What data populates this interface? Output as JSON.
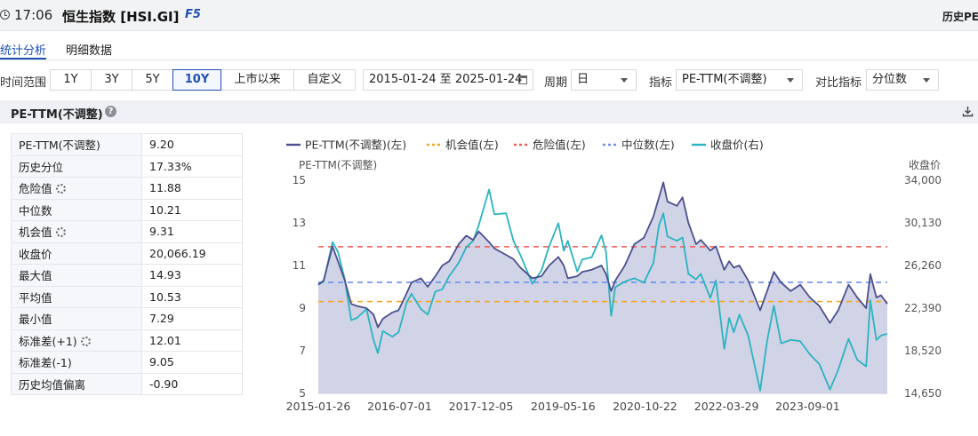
{
  "titlebar": {
    "time": "17:06",
    "index_title": "恒生指数 [HSI.GI]",
    "f5": "F5",
    "history_link": "历史PE"
  },
  "tabs": [
    {
      "label": "统计分析"
    },
    {
      "label": "明细数据"
    }
  ],
  "filters": {
    "time_range_label": "时间范围",
    "ranges": [
      "1Y",
      "3Y",
      "5Y",
      "10Y",
      "上市以来",
      "自定义"
    ],
    "active_range": "10Y",
    "date_range": "2015-01-24 至 2025-01-24",
    "period_label": "周期",
    "period_value": "日",
    "indicator_label": "指标",
    "indicator_value": "PE-TTM(不调整)",
    "compare_label": "对比指标",
    "compare_value": "分位数"
  },
  "section": {
    "title": "PE-TTM(不调整)"
  },
  "stats": [
    {
      "label": "PE-TTM(不调整)",
      "value": "9.20",
      "gear": false
    },
    {
      "label": "历史分位",
      "value": "17.33%",
      "gear": false
    },
    {
      "label": "危险值",
      "value": "11.88",
      "gear": true
    },
    {
      "label": "中位数",
      "value": "10.21",
      "gear": false
    },
    {
      "label": "机会值",
      "value": "9.31",
      "gear": true
    },
    {
      "label": "收盘价",
      "value": "20,066.19",
      "gear": false
    },
    {
      "label": "最大值",
      "value": "14.93",
      "gear": false
    },
    {
      "label": "平均值",
      "value": "10.53",
      "gear": false
    },
    {
      "label": "最小值",
      "value": "7.29",
      "gear": false
    },
    {
      "label": "标准差(+1)",
      "value": "12.01",
      "gear": true
    },
    {
      "label": "标准差(-1)",
      "value": "9.05",
      "gear": false
    },
    {
      "label": "历史均值偏离",
      "value": "-0.90",
      "gear": false
    }
  ],
  "colors": {
    "pe": "#4b4f8f",
    "pe_fill": "#c9cbe2",
    "price": "#2bb3c0",
    "opportunity": "#f5a623",
    "danger": "#f25c54",
    "median": "#6e8ef0",
    "accent": "#1f4fb3"
  },
  "chart_data": {
    "type": "line",
    "legend": [
      "PE-TTM(不调整)(左)",
      "机会值(左)",
      "危险值(左)",
      "中位数(左)",
      "收盘价(右)"
    ],
    "left_axis_label": "PE-TTM(不调整)",
    "right_axis_label": "收盘价",
    "left_ticks": [
      5,
      7,
      9,
      11,
      13,
      15
    ],
    "right_ticks": [
      "14,650",
      "18,520",
      "22,390",
      "26,260",
      "30,130",
      "34,000"
    ],
    "ylim_left": [
      5,
      15
    ],
    "ylim_right": [
      14650,
      34000
    ],
    "x_ticks": [
      "2015-01-26",
      "2016-07-01",
      "2017-12-05",
      "2019-05-16",
      "2020-10-22",
      "2022-03-29",
      "2023-09-01"
    ],
    "x_range": [
      "2015-01-26",
      "2025-01-24"
    ],
    "reference_lines": {
      "opportunity": 9.31,
      "danger": 11.88,
      "median": 10.21
    },
    "series": [
      {
        "name": "PE-TTM(不调整)",
        "axis": "left",
        "points": [
          [
            "2015-01-26",
            10.1
          ],
          [
            "2015-03-01",
            10.3
          ],
          [
            "2015-04-27",
            11.9
          ],
          [
            "2015-06-01",
            11.2
          ],
          [
            "2015-07-15",
            10.3
          ],
          [
            "2015-08-25",
            9.2
          ],
          [
            "2015-10-01",
            9.1
          ],
          [
            "2015-12-01",
            9.0
          ],
          [
            "2016-01-15",
            8.7
          ],
          [
            "2016-02-12",
            8.1
          ],
          [
            "2016-03-15",
            8.5
          ],
          [
            "2016-05-15",
            8.8
          ],
          [
            "2016-06-24",
            8.9
          ],
          [
            "2016-08-15",
            9.7
          ],
          [
            "2016-09-15",
            10.2
          ],
          [
            "2016-11-15",
            10.4
          ],
          [
            "2016-12-28",
            10.0
          ],
          [
            "2017-02-15",
            10.5
          ],
          [
            "2017-04-01",
            11.0
          ],
          [
            "2017-05-15",
            11.2
          ],
          [
            "2017-06-15",
            11.6
          ],
          [
            "2017-07-15",
            12.0
          ],
          [
            "2017-09-01",
            12.4
          ],
          [
            "2017-10-15",
            12.2
          ],
          [
            "2017-11-20",
            12.6
          ],
          [
            "2018-01-26",
            12.1
          ],
          [
            "2018-03-01",
            11.8
          ],
          [
            "2018-05-15",
            11.5
          ],
          [
            "2018-07-01",
            11.3
          ],
          [
            "2018-08-15",
            10.9
          ],
          [
            "2018-10-30",
            10.4
          ],
          [
            "2018-12-28",
            10.5
          ],
          [
            "2019-02-15",
            11.0
          ],
          [
            "2019-04-15",
            11.4
          ],
          [
            "2019-05-20",
            11.0
          ],
          [
            "2019-06-15",
            10.4
          ],
          [
            "2019-08-15",
            10.5
          ],
          [
            "2019-09-15",
            10.7
          ],
          [
            "2019-11-15",
            10.8
          ],
          [
            "2020-01-17",
            11.0
          ],
          [
            "2020-02-15",
            10.6
          ],
          [
            "2020-03-19",
            9.8
          ],
          [
            "2020-04-15",
            10.3
          ],
          [
            "2020-06-15",
            11.0
          ],
          [
            "2020-08-15",
            12.0
          ],
          [
            "2020-10-15",
            12.3
          ],
          [
            "2020-12-15",
            13.3
          ],
          [
            "2021-01-20",
            14.2
          ],
          [
            "2021-02-17",
            14.9
          ],
          [
            "2021-03-15",
            14.0
          ],
          [
            "2021-05-15",
            13.8
          ],
          [
            "2021-06-20",
            14.2
          ],
          [
            "2021-07-28",
            13.0
          ],
          [
            "2021-09-15",
            12.0
          ],
          [
            "2021-10-15",
            12.2
          ],
          [
            "2021-12-15",
            11.7
          ],
          [
            "2022-01-20",
            11.9
          ],
          [
            "2022-03-15",
            10.8
          ],
          [
            "2022-04-15",
            11.2
          ],
          [
            "2022-05-15",
            10.9
          ],
          [
            "2022-06-20",
            11.0
          ],
          [
            "2022-08-15",
            10.3
          ],
          [
            "2022-10-31",
            8.9
          ],
          [
            "2022-12-15",
            9.8
          ],
          [
            "2023-01-27",
            10.7
          ],
          [
            "2023-03-15",
            10.2
          ],
          [
            "2023-05-15",
            9.8
          ],
          [
            "2023-07-15",
            10.1
          ],
          [
            "2023-09-15",
            9.5
          ],
          [
            "2023-11-15",
            9.1
          ],
          [
            "2024-01-22",
            8.3
          ],
          [
            "2024-03-15",
            8.9
          ],
          [
            "2024-05-20",
            10.1
          ],
          [
            "2024-07-15",
            9.5
          ],
          [
            "2024-09-10",
            9.0
          ],
          [
            "2024-10-07",
            10.6
          ],
          [
            "2024-11-15",
            9.5
          ],
          [
            "2024-12-15",
            9.6
          ],
          [
            "2025-01-24",
            9.2
          ]
        ]
      },
      {
        "name": "收盘价",
        "axis": "right",
        "points": [
          [
            "2015-01-26",
            24500
          ],
          [
            "2015-03-01",
            24800
          ],
          [
            "2015-04-27",
            28400
          ],
          [
            "2015-06-01",
            27500
          ],
          [
            "2015-07-15",
            25000
          ],
          [
            "2015-08-25",
            21300
          ],
          [
            "2015-10-01",
            21500
          ],
          [
            "2015-12-01",
            22300
          ],
          [
            "2016-01-15",
            19500
          ],
          [
            "2016-02-12",
            18300
          ],
          [
            "2016-03-15",
            20300
          ],
          [
            "2016-05-15",
            19800
          ],
          [
            "2016-06-24",
            20200
          ],
          [
            "2016-08-15",
            22900
          ],
          [
            "2016-09-15",
            23700
          ],
          [
            "2016-11-15",
            22300
          ],
          [
            "2016-12-28",
            21800
          ],
          [
            "2017-02-15",
            23900
          ],
          [
            "2017-04-01",
            24100
          ],
          [
            "2017-05-15",
            25300
          ],
          [
            "2017-06-15",
            25900
          ],
          [
            "2017-07-15",
            26500
          ],
          [
            "2017-09-01",
            27900
          ],
          [
            "2017-10-15",
            28500
          ],
          [
            "2017-11-20",
            29900
          ],
          [
            "2018-01-26",
            33150
          ],
          [
            "2018-03-01",
            30900
          ],
          [
            "2018-05-15",
            31000
          ],
          [
            "2018-07-01",
            28500
          ],
          [
            "2018-08-15",
            27200
          ],
          [
            "2018-10-30",
            24600
          ],
          [
            "2018-12-28",
            25800
          ],
          [
            "2019-02-15",
            28000
          ],
          [
            "2019-04-15",
            30100
          ],
          [
            "2019-05-20",
            27600
          ],
          [
            "2019-06-15",
            28500
          ],
          [
            "2019-08-15",
            25700
          ],
          [
            "2019-09-15",
            26800
          ],
          [
            "2019-11-15",
            27000
          ],
          [
            "2020-01-17",
            29000
          ],
          [
            "2020-02-15",
            27500
          ],
          [
            "2020-03-19",
            21700
          ],
          [
            "2020-04-15",
            24300
          ],
          [
            "2020-06-15",
            24800
          ],
          [
            "2020-08-15",
            25100
          ],
          [
            "2020-10-15",
            24700
          ],
          [
            "2020-12-15",
            26500
          ],
          [
            "2021-01-20",
            29900
          ],
          [
            "2021-02-17",
            31000
          ],
          [
            "2021-03-15",
            28900
          ],
          [
            "2021-05-15",
            28500
          ],
          [
            "2021-06-20",
            28800
          ],
          [
            "2021-07-28",
            25500
          ],
          [
            "2021-09-15",
            25000
          ],
          [
            "2021-10-15",
            25500
          ],
          [
            "2021-12-15",
            23300
          ],
          [
            "2022-01-20",
            24900
          ],
          [
            "2022-03-15",
            18700
          ],
          [
            "2022-04-15",
            21500
          ],
          [
            "2022-05-15",
            20200
          ],
          [
            "2022-06-20",
            21800
          ],
          [
            "2022-08-15",
            19900
          ],
          [
            "2022-10-31",
            14900
          ],
          [
            "2022-12-15",
            19400
          ],
          [
            "2023-01-27",
            22600
          ],
          [
            "2023-03-15",
            19200
          ],
          [
            "2023-05-15",
            19500
          ],
          [
            "2023-07-15",
            19400
          ],
          [
            "2023-09-15",
            18200
          ],
          [
            "2023-11-15",
            17300
          ],
          [
            "2024-01-22",
            15000
          ],
          [
            "2024-03-15",
            16800
          ],
          [
            "2024-05-20",
            19600
          ],
          [
            "2024-07-15",
            17700
          ],
          [
            "2024-09-10",
            17100
          ],
          [
            "2024-10-07",
            23100
          ],
          [
            "2024-11-15",
            19500
          ],
          [
            "2024-12-15",
            19900
          ],
          [
            "2025-01-24",
            20066
          ]
        ]
      }
    ]
  }
}
